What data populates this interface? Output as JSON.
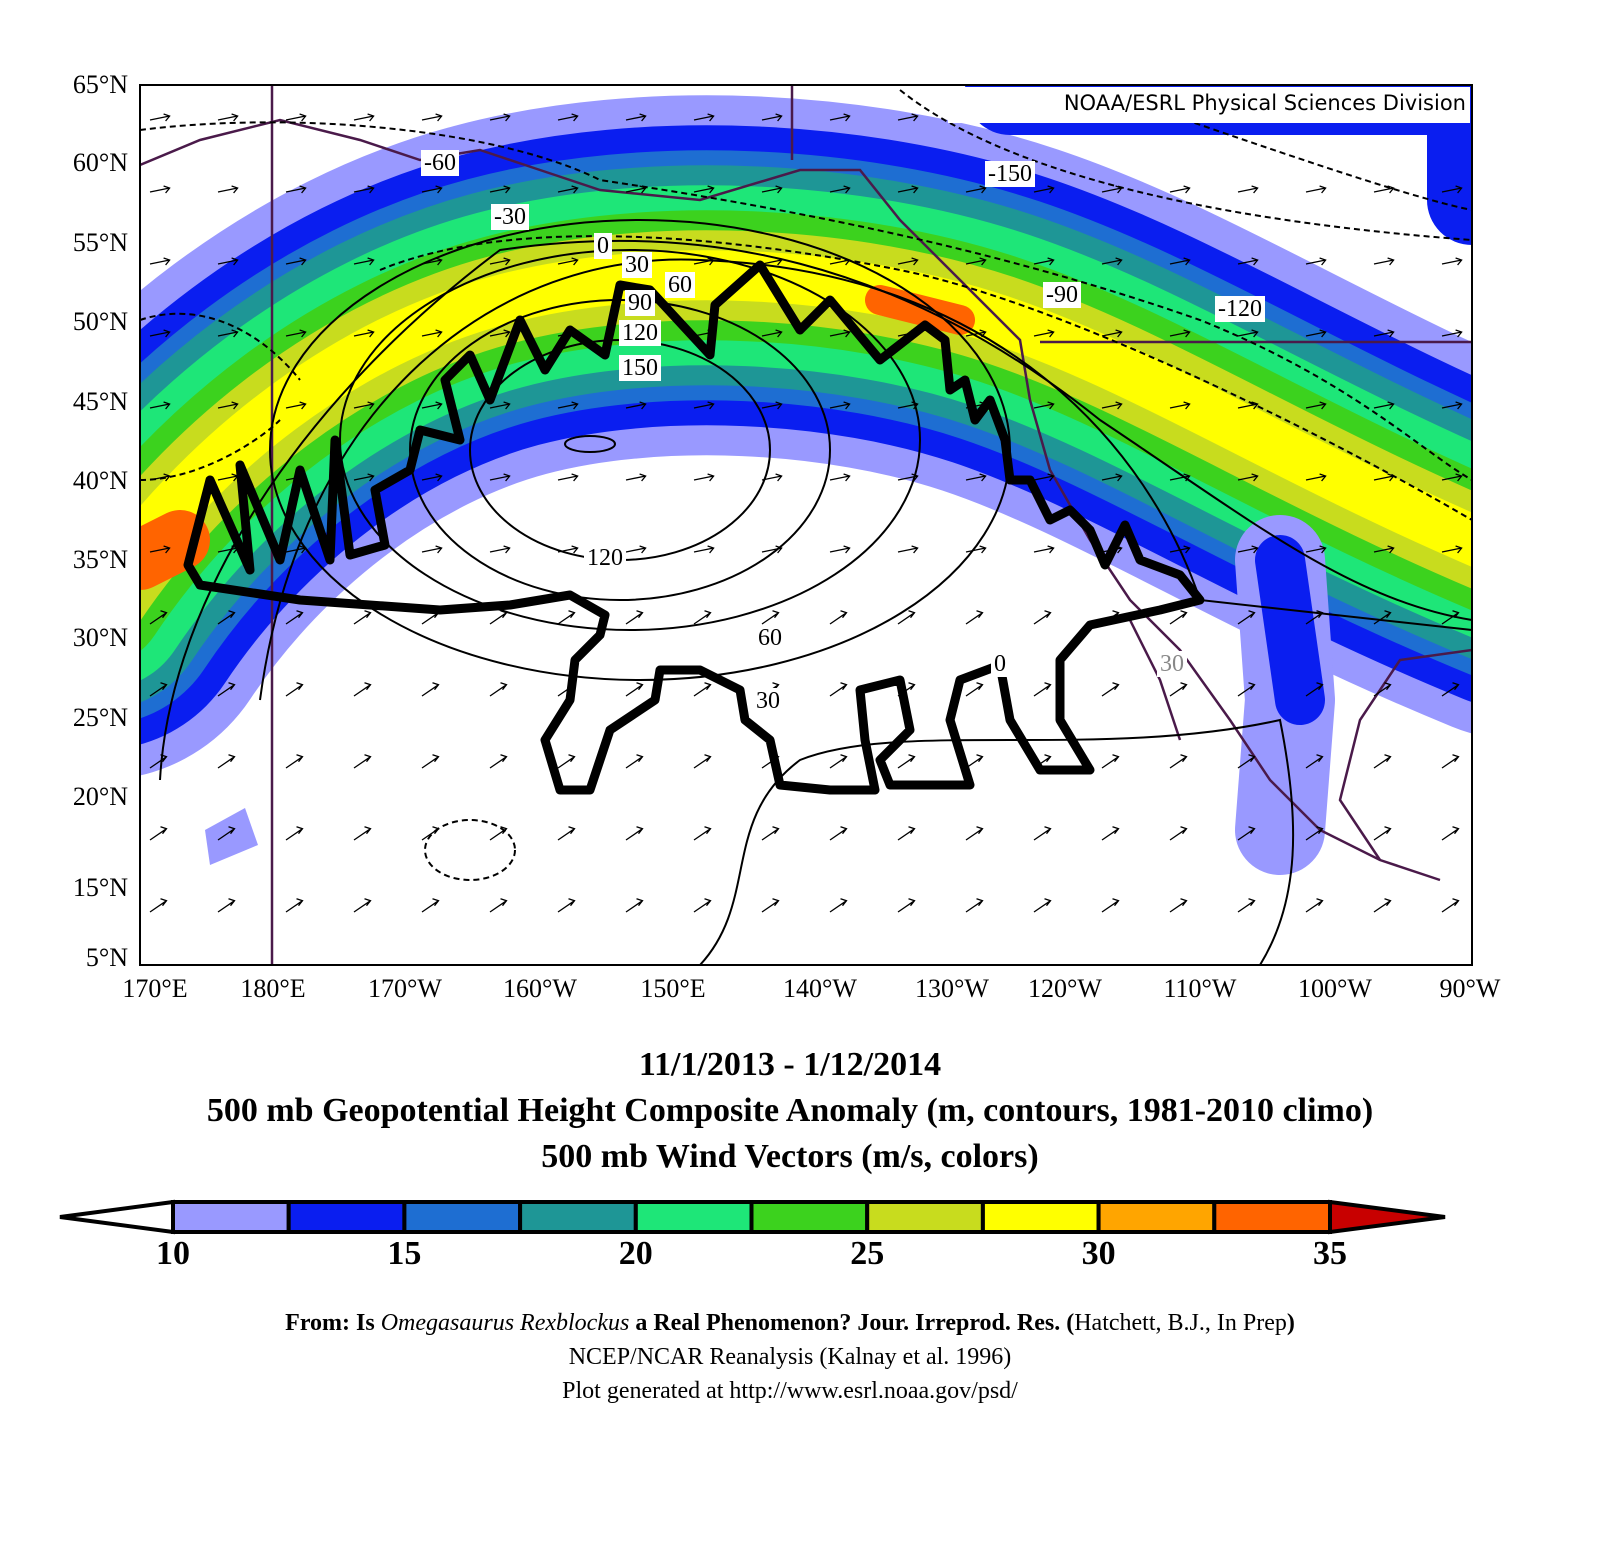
{
  "header": {
    "logo_text": "NOAA/ESRL Physical Sciences Division"
  },
  "map": {
    "lat_labels": [
      "65°N",
      "60°N",
      "55°N",
      "50°N",
      "45°N",
      "40°N",
      "35°N",
      "30°N",
      "25°N",
      "20°N",
      "15°N",
      "5°N"
    ],
    "lon_labels": [
      "170°E",
      "180°E",
      "170°W",
      "160°W",
      "150°E",
      "140°W",
      "130°W",
      "120°W",
      "110°W",
      "100°W",
      "90°W"
    ],
    "contour_labels": [
      "-60",
      "-30",
      "0",
      "30",
      "60",
      "90",
      "120",
      "150",
      "-150",
      "-90",
      "-120",
      "120",
      "60",
      "30",
      "0",
      "30"
    ]
  },
  "title": {
    "lines": [
      "11/1/2013 - 1/12/2014",
      "500 mb Geopotential Height Composite Anomaly (m, contours, 1981-2010 climo)",
      "500 mb Wind Vectors (m/s, colors)"
    ]
  },
  "colorbar": {
    "labels": [
      10,
      15,
      20,
      25,
      30,
      35
    ],
    "colors": [
      "#ffffff",
      "#9999ff",
      "#0a1ef0",
      "#1e6ed2",
      "#1e9696",
      "#1ee678",
      "#3cd21e",
      "#c8dc1e",
      "#ffff00",
      "#ffa500",
      "#ff6400",
      "#c80000"
    ]
  },
  "credits": {
    "line1": [
      "From: Is ",
      "Omegasaurus Rexblockus",
      " a Real Phenomenon? Jour. Irreprod. Res. (",
      "Hatchett, B.J., In Prep",
      ")"
    ],
    "line2": "NCEP/NCAR Reanalysis (Kalnay et al. 1996)",
    "line3": "Plot generated at http://www.esrl.noaa.gov/psd/"
  }
}
